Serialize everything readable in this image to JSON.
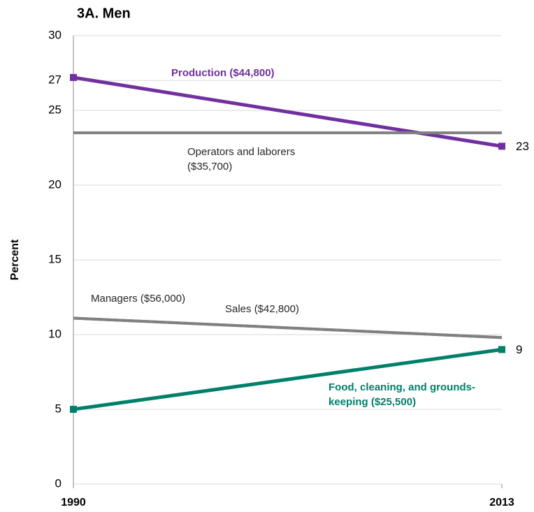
{
  "chart_data": {
    "type": "line",
    "title": "3A. Men",
    "ylabel": "Percent",
    "x": [
      1990,
      2013
    ],
    "xlim": [
      1990,
      2013
    ],
    "xticks": [
      1990,
      2013
    ],
    "ylim": [
      0,
      30
    ],
    "yticks": [
      0,
      5,
      10,
      15,
      20,
      25,
      27,
      30
    ],
    "grid": true,
    "series": [
      {
        "name": "Production ($44,800)",
        "color": "#7030a0",
        "values": [
          27.2,
          22.6
        ],
        "value_labels": [
          null,
          "23"
        ],
        "marker": "square",
        "width": 5
      },
      {
        "name": "Operators and laborers ($35,700)",
        "color": "#808080",
        "values": [
          23.5,
          23.5
        ],
        "width": 4
      },
      {
        "name": "Managers ($56,000)",
        "color": "#808080",
        "values": [
          11.1,
          9.8
        ],
        "width": 4
      },
      {
        "name": "Sales ($42,800)",
        "color": "#808080",
        "values": [
          11.1,
          9.8
        ],
        "width": 4
      },
      {
        "name": "Food, cleaning, and grounds-keeping ($25,500)",
        "color": "#00806a",
        "values": [
          5.0,
          9.0
        ],
        "value_labels": [
          null,
          "9"
        ],
        "marker": "square",
        "width": 5
      }
    ]
  }
}
